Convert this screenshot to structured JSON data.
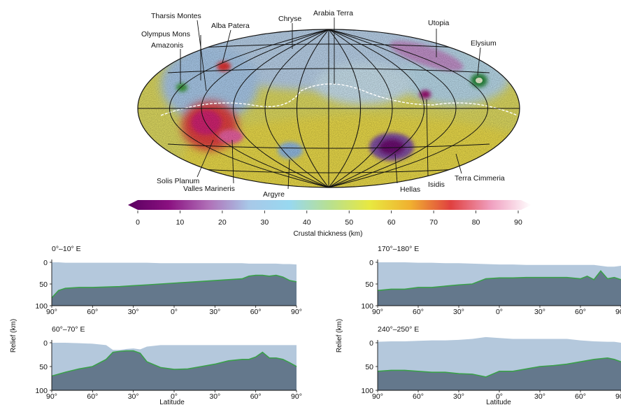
{
  "figure": {
    "map": {
      "labels": [
        {
          "name": "tharsis-montes",
          "text": "Tharsis Montes"
        },
        {
          "name": "olympus-mons",
          "text": "Olympus Mons"
        },
        {
          "name": "alba-patera",
          "text": "Alba Patera"
        },
        {
          "name": "amazonis",
          "text": "Amazonis"
        },
        {
          "name": "chryse",
          "text": "Chryse"
        },
        {
          "name": "arabia-terra",
          "text": "Arabia Terra"
        },
        {
          "name": "utopia",
          "text": "Utopia"
        },
        {
          "name": "elysium",
          "text": "Elysium"
        },
        {
          "name": "solis-planum",
          "text": "Solis Planum"
        },
        {
          "name": "valles-marineris",
          "text": "Valles Marineris"
        },
        {
          "name": "argyre",
          "text": "Argyre"
        },
        {
          "name": "hellas",
          "text": "Hellas"
        },
        {
          "name": "isidis",
          "text": "Isidis"
        },
        {
          "name": "terra-cimmeria",
          "text": "Terra Cimmeria"
        }
      ]
    },
    "colorbar": {
      "ticks": [
        "0",
        "10",
        "20",
        "30",
        "40",
        "50",
        "60",
        "70",
        "80",
        "90"
      ],
      "label": "Crustal thickness (km)",
      "colors": [
        "#5a0060",
        "#8a1080",
        "#b070b8",
        "#a8c8e8",
        "#98d8f0",
        "#b8e090",
        "#e8e840",
        "#f0b030",
        "#e04040",
        "#f0a0c0",
        "#ffffff"
      ]
    },
    "colors": {
      "crust": "#b4c8dc",
      "mantle": "#64788c",
      "moho": "#3aa04a"
    }
  },
  "chart_data": [
    {
      "type": "area",
      "title": "0°–10° E",
      "xlabel": "",
      "ylabel": "Relief (km)",
      "xlim": [
        -90,
        90
      ],
      "ylim": [
        100,
        0
      ],
      "x_ticks": [
        "90°",
        "60°",
        "30°",
        "0°",
        "30°",
        "60°",
        "90°"
      ],
      "y_ticks": [
        "0",
        "50",
        "100"
      ],
      "x": [
        -90,
        -85,
        -80,
        -70,
        -60,
        -50,
        -40,
        -30,
        -20,
        -10,
        0,
        10,
        20,
        30,
        40,
        50,
        55,
        60,
        65,
        70,
        75,
        80,
        85,
        90
      ],
      "series": [
        {
          "values": [
            0,
            0,
            1,
            1,
            1,
            1,
            1,
            1,
            1,
            2,
            2,
            2,
            2,
            2,
            2,
            2,
            3,
            3,
            3,
            3,
            3,
            4,
            4,
            5
          ]
        },
        {
          "values": [
            82,
            65,
            60,
            58,
            58,
            57,
            56,
            54,
            52,
            50,
            48,
            46,
            44,
            42,
            40,
            38,
            32,
            30,
            30,
            32,
            30,
            34,
            42,
            45
          ]
        }
      ]
    },
    {
      "type": "area",
      "title": "60°–70° E",
      "xlabel": "Latitude",
      "ylabel": "Relief (km)",
      "xlim": [
        -90,
        90
      ],
      "ylim": [
        100,
        0
      ],
      "x_ticks": [
        "90°",
        "60°",
        "30°",
        "0°",
        "30°",
        "60°",
        "90°"
      ],
      "y_ticks": [
        "0",
        "50",
        "100"
      ],
      "x": [
        -90,
        -80,
        -70,
        -60,
        -50,
        -45,
        -40,
        -35,
        -30,
        -25,
        -20,
        -10,
        0,
        10,
        20,
        30,
        40,
        50,
        55,
        60,
        65,
        70,
        75,
        80,
        85,
        90
      ],
      "series": [
        {
          "values": [
            0,
            0,
            1,
            2,
            5,
            15,
            15,
            13,
            12,
            14,
            8,
            5,
            5,
            5,
            5,
            5,
            5,
            5,
            5,
            5,
            5,
            5,
            5,
            5,
            5,
            5
          ]
        },
        {
          "values": [
            70,
            62,
            55,
            50,
            35,
            20,
            18,
            17,
            17,
            22,
            40,
            52,
            56,
            55,
            50,
            45,
            38,
            35,
            35,
            30,
            20,
            32,
            32,
            35,
            42,
            50
          ]
        }
      ]
    },
    {
      "type": "area",
      "title": "170°–180° E",
      "xlabel": "",
      "ylabel": "Relief (km)",
      "xlim": [
        -90,
        90
      ],
      "ylim": [
        100,
        0
      ],
      "x_ticks": [
        "90°",
        "60°",
        "30°",
        "0°",
        "30°",
        "60°",
        "90°"
      ],
      "y_ticks": [
        "0",
        "50",
        "100"
      ],
      "x": [
        -90,
        -80,
        -70,
        -60,
        -50,
        -40,
        -30,
        -20,
        -10,
        0,
        10,
        20,
        30,
        40,
        50,
        60,
        65,
        70,
        75,
        80,
        85,
        90
      ],
      "series": [
        {
          "values": [
            0,
            0,
            0,
            1,
            1,
            2,
            2,
            3,
            4,
            5,
            5,
            6,
            6,
            6,
            6,
            6,
            6,
            6,
            8,
            10,
            10,
            8
          ]
        },
        {
          "values": [
            65,
            62,
            62,
            58,
            58,
            55,
            52,
            50,
            38,
            36,
            36,
            35,
            35,
            35,
            35,
            38,
            32,
            40,
            20,
            38,
            35,
            40
          ]
        }
      ]
    },
    {
      "type": "area",
      "title": "240°–250° E",
      "xlabel": "Latitude",
      "ylabel": "Relief (km)",
      "xlim": [
        -90,
        90
      ],
      "ylim": [
        100,
        0
      ],
      "x_ticks": [
        "90°",
        "60°",
        "30°",
        "0°",
        "30°",
        "60°",
        "90°"
      ],
      "y_ticks": [
        "0",
        "50",
        "100"
      ],
      "x": [
        -90,
        -80,
        -70,
        -60,
        -50,
        -40,
        -30,
        -20,
        -10,
        0,
        10,
        20,
        30,
        40,
        50,
        60,
        70,
        80,
        85,
        90
      ],
      "series": [
        {
          "values": [
            -2,
            -3,
            -3,
            -4,
            -5,
            -5,
            -6,
            -8,
            -12,
            -10,
            -8,
            -8,
            -8,
            -8,
            -8,
            -5,
            -3,
            -2,
            -2,
            0
          ]
        },
        {
          "values": [
            60,
            58,
            58,
            60,
            62,
            62,
            65,
            66,
            72,
            60,
            60,
            55,
            50,
            48,
            45,
            40,
            35,
            32,
            35,
            40
          ]
        }
      ]
    }
  ]
}
